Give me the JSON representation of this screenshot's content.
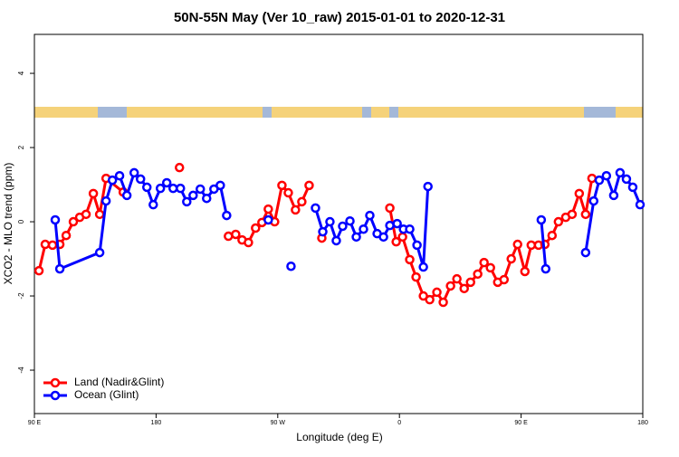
{
  "chart_data": {
    "type": "line",
    "title": "50N-55N May (Ver 10_raw)   2015-01-01 to 2020-12-31",
    "x_label": "Longitude (deg E)",
    "y_label": "XCO2 - MLO trend (ppm)",
    "xlim": [
      90,
      540
    ],
    "ylim": [
      -5.17,
      5.05
    ],
    "xticks": [
      {
        "value": 90,
        "label": "90 E"
      },
      180,
      {
        "value": 270,
        "label": "90 W"
      },
      {
        "value": 360,
        "label": "0"
      },
      {
        "value": 450,
        "label": "90 E"
      },
      {
        "value": 540,
        "label": "180"
      }
    ],
    "yticks": [
      -4,
      -2,
      0,
      2,
      4
    ],
    "legend": "bottom-left",
    "series": [
      {
        "name": "Land (Nadir&Glint)",
        "color": "#ff0000",
        "x": [
          93.4,
          98,
          103.4,
          108.8,
          113.5,
          118.8,
          123.5,
          128.2,
          133.6,
          138.3,
          143,
          155.7,
          null,
          197.3,
          null,
          233.5,
          238.9,
          243.6,
          248.3,
          253.6,
          258.3,
          263,
          267.7,
          273.1,
          277.8,
          283.1,
          287.8,
          293.2,
          null,
          302.6,
          null,
          352.9,
          357.6,
          362.3,
          367.6,
          372.3,
          377.7,
          382.4,
          387.7,
          392.4,
          397.8,
          402.5,
          407.9,
          412.6,
          417.9,
          422.6,
          427.3,
          432.7,
          437.4,
          442.7,
          447.4,
          452.8,
          457.5,
          462.9,
          467.6,
          472.9,
          477.6,
          483,
          487.7,
          493,
          497.7,
          502.4
        ],
        "values": [
          -1.32,
          -0.61,
          -0.63,
          -0.61,
          -0.37,
          0,
          0.12,
          0.2,
          0.76,
          0.2,
          1.17,
          0.8,
          null,
          1.46,
          null,
          -0.39,
          -0.34,
          -0.49,
          -0.56,
          -0.17,
          -0.02,
          0.34,
          0,
          0.98,
          0.78,
          0.32,
          0.54,
          0.98,
          null,
          -0.44,
          null,
          0.37,
          -0.54,
          -0.41,
          -1.02,
          -1.49,
          -2,
          -2.1,
          -1.9,
          -2.17,
          -1.73,
          -1.54,
          -1.8,
          -1.63,
          -1.41,
          -1.1,
          -1.24,
          -1.63,
          -1.56,
          -1,
          -0.61,
          -1.34,
          -0.63,
          -0.63,
          -0.61,
          -0.37,
          0,
          0.12,
          0.2,
          0.76,
          0.2,
          1.17
        ]
      },
      {
        "name": "Ocean (Glint)",
        "color": "#0000ff",
        "x": [
          105.4,
          108.8,
          138.3,
          143,
          147.7,
          153,
          158.4,
          163.8,
          168.5,
          173.2,
          177.9,
          183.2,
          187.9,
          192.6,
          198,
          202.7,
          207.4,
          212.7,
          217.4,
          222.8,
          227.5,
          232.2,
          null,
          263,
          null,
          279.8,
          null,
          297.9,
          303.3,
          308.6,
          313.3,
          318,
          323.4,
          328.1,
          333.4,
          338.1,
          343.5,
          348.2,
          352.9,
          358.3,
          363,
          367.6,
          373,
          377.7,
          381.1,
          null,
          464.9,
          468.2,
          null,
          497.7,
          503.7,
          507.8,
          513.1,
          518.5,
          523.2,
          527.9,
          532.6,
          538
        ],
        "values": [
          0.05,
          -1.27,
          -0.83,
          0.56,
          1.12,
          1.24,
          0.71,
          1.32,
          1.15,
          0.93,
          0.46,
          0.9,
          1.05,
          0.9,
          0.9,
          0.54,
          0.71,
          0.88,
          0.63,
          0.88,
          0.98,
          0.17,
          null,
          0.05,
          null,
          -1.2,
          null,
          0.37,
          -0.27,
          0,
          -0.51,
          -0.12,
          0.02,
          -0.41,
          -0.2,
          0.17,
          -0.32,
          -0.41,
          -0.1,
          -0.05,
          -0.2,
          -0.2,
          -0.63,
          -1.22,
          0.95,
          null,
          0.05,
          -1.27,
          null,
          -0.83,
          0.56,
          1.12,
          1.24,
          0.71,
          1.32,
          1.15,
          0.93,
          0.46
        ]
      }
    ]
  }
}
